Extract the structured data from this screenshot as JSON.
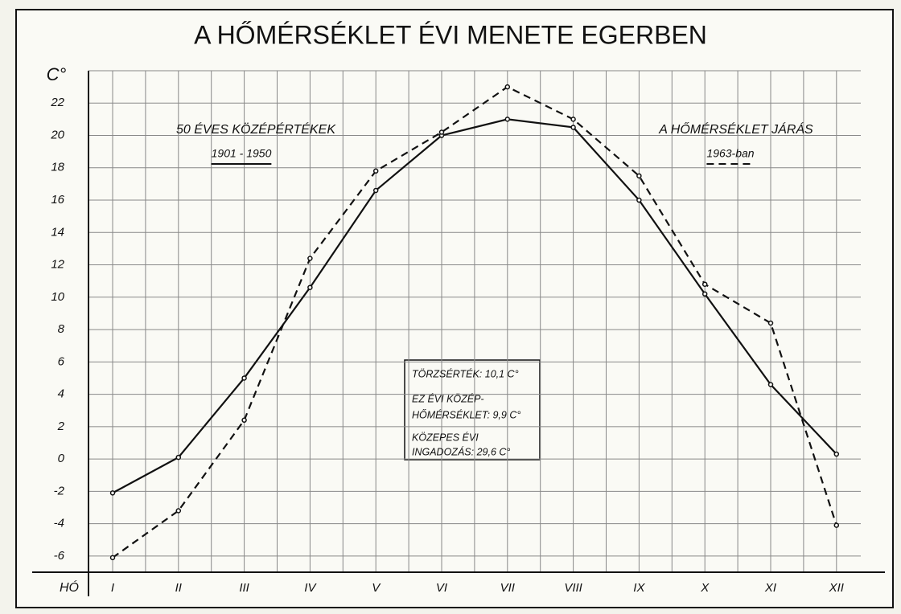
{
  "chart_data": {
    "type": "line",
    "title": "A HŐMÉRSÉKLET ÉVI MENETE EGERBEN",
    "y_label": "C°",
    "x_label": "HÓ",
    "categories": [
      "I",
      "II",
      "III",
      "IV",
      "V",
      "VI",
      "VII",
      "VIII",
      "IX",
      "X",
      "XI",
      "XII"
    ],
    "series": [
      {
        "name": "50 ÉVES KÖZÉPÉRTÉKEK",
        "period": "1901 - 1950",
        "color": "#111111",
        "dash": false,
        "values": [
          -2.1,
          0.1,
          5.0,
          10.6,
          16.6,
          20.0,
          21.0,
          20.5,
          16.0,
          10.2,
          4.6,
          0.3
        ]
      },
      {
        "name": "A HŐMÉRSÉKLET JÁRÁS",
        "period": "1963-ban",
        "color": "#111111",
        "dash": true,
        "values": [
          -6.1,
          -3.2,
          2.4,
          12.4,
          17.8,
          20.2,
          23.0,
          21.0,
          17.5,
          10.8,
          8.4,
          -4.1
        ]
      }
    ],
    "ylim": [
      -7,
      24
    ],
    "yticks": [
      -6,
      -4,
      -2,
      0,
      2,
      4,
      6,
      8,
      10,
      12,
      14,
      16,
      18,
      20,
      22
    ],
    "grid": true,
    "info_box": [
      "TÖRZSÉRTÉK: 10,1 C°",
      "EZ ÉVI KÖZÉP-",
      "HŐMÉRSÉKLET: 9,9 C°",
      "KÖZEPES ÉVI",
      "INGADOZÁS: 29,6 C°"
    ]
  }
}
